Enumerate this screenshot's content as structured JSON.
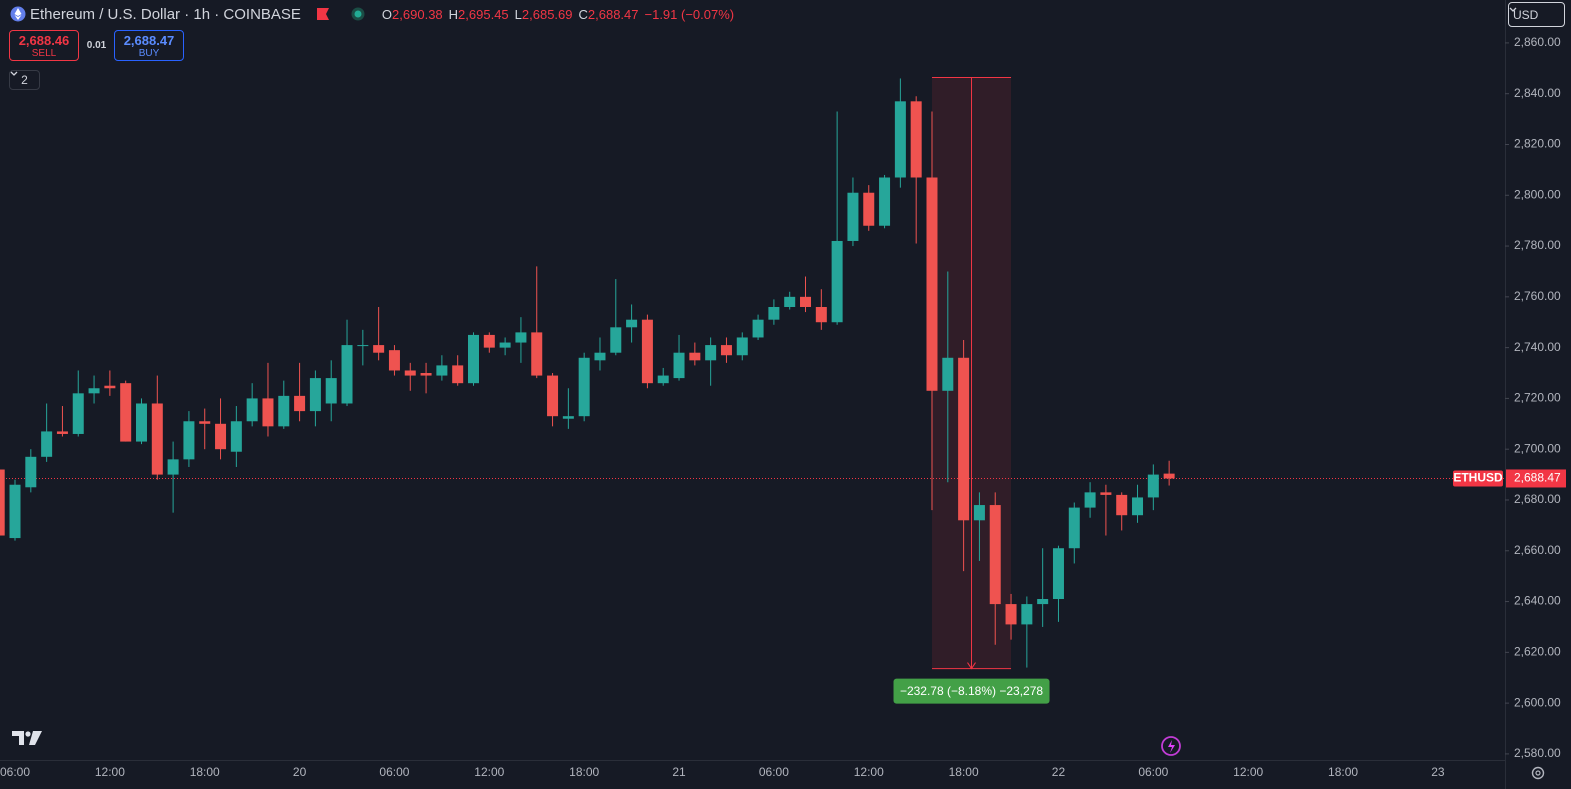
{
  "chart_data": {
    "type": "candlestick",
    "title": "Ethereum / U.S. Dollar · 1h · COINBASE",
    "ohlc_legend": [
      {
        "label": "O",
        "value": "2,690.38"
      },
      {
        "label": "H",
        "value": "2,695.45"
      },
      {
        "label": "L",
        "value": "2,685.69"
      },
      {
        "label": "C",
        "value": "2,688.47"
      }
    ],
    "change": "−1.91 (−0.07%)",
    "trade": {
      "sell_price": "2,688.46",
      "sell": "SELL",
      "spread": 0.01,
      "buy_price": "2,688.47",
      "buy": "BUY"
    },
    "indicator_count": 2,
    "currency": "USD",
    "symbol": "ETHUSD",
    "last_price": {
      "value": 2688.47,
      "label": "2,688.47"
    },
    "measure": {
      "high": 2846.4,
      "low": 2613.6,
      "label": "−232.78 (−8.18%) −23,278"
    },
    "up_color": "#26a69a",
    "down_color": "#ef5350",
    "categories": [
      null,
      "06:00",
      null,
      null,
      null,
      null,
      null,
      "12:00",
      null,
      null,
      null,
      null,
      null,
      "18:00",
      null,
      null,
      null,
      null,
      null,
      "20",
      null,
      null,
      null,
      null,
      null,
      "06:00",
      null,
      null,
      null,
      null,
      null,
      "12:00",
      null,
      null,
      null,
      null,
      null,
      "18:00",
      null,
      null,
      null,
      null,
      null,
      "21",
      null,
      null,
      null,
      null,
      null,
      "06:00",
      null,
      null,
      null,
      null,
      null,
      "12:00",
      null,
      null,
      null,
      null,
      null,
      "18:00",
      null,
      null,
      null,
      null,
      null,
      "22",
      null,
      null,
      null,
      null,
      null,
      "06:00",
      null,
      null,
      null,
      null,
      null,
      "12:00",
      null,
      null,
      null,
      null,
      null,
      "18:00",
      null,
      null,
      null,
      null,
      null,
      "23",
      null,
      null,
      null
    ],
    "open": [
      2692,
      2665,
      2685,
      2697,
      2707,
      2706,
      2722,
      2725,
      2726,
      2703,
      2718,
      2690,
      2696,
      2711,
      2710,
      2699,
      2711,
      2720,
      2709,
      2721,
      2715,
      2718,
      2718,
      2741,
      2741,
      2739,
      2731,
      2730,
      2729,
      2733,
      2726,
      2745,
      2740,
      2742,
      2746,
      2729,
      2712,
      2713,
      2735,
      2738,
      2748,
      2751,
      2726,
      2728,
      2738,
      2735,
      2741,
      2737,
      2744,
      2751,
      2756,
      2760,
      2756,
      2750,
      2782,
      2801,
      2788,
      2807,
      2837,
      2807,
      2723,
      2736,
      2672,
      2678,
      2639,
      2631,
      2639,
      2641,
      2661,
      2677,
      2683,
      2682,
      2674,
      2681,
      2690.38,
      null,
      null,
      null,
      null,
      null,
      null,
      null,
      null,
      null,
      null,
      null,
      null,
      null,
      null,
      null,
      null,
      null,
      null,
      null,
      null
    ],
    "high": [
      2693,
      2688,
      2700,
      2718,
      2717,
      2731,
      2729,
      2731,
      2727,
      2720,
      2729,
      2703,
      2715,
      2716,
      2720,
      2717,
      2726,
      2734,
      2727,
      2734,
      2731,
      2735,
      2751,
      2747,
      2756,
      2741,
      2734,
      2734,
      2737,
      2737,
      2746,
      2746,
      2744,
      2752,
      2772,
      2730,
      2724,
      2738,
      2744,
      2767,
      2757,
      2753,
      2732,
      2745,
      2742,
      2744,
      2744,
      2746,
      2753,
      2759,
      2762,
      2768,
      2763,
      2833,
      2807,
      2804,
      2808,
      2846,
      2839,
      2833,
      2770,
      2743,
      2683,
      2683,
      2643,
      2642,
      2661,
      2662,
      2679,
      2687,
      2686,
      2683,
      2686,
      2694,
      2695.45,
      null,
      null,
      null,
      null,
      null,
      null,
      null,
      null,
      null,
      null,
      null,
      null,
      null,
      null,
      null,
      null,
      null,
      null,
      null,
      null
    ],
    "low": [
      2665,
      2664,
      2683,
      2695,
      2705,
      2705,
      2718,
      2721,
      2703,
      2702,
      2688,
      2675,
      2693,
      2700,
      2696,
      2693,
      2709,
      2705,
      2708,
      2711,
      2709,
      2711,
      2717,
      2733,
      2735,
      2729,
      2723,
      2722,
      2727,
      2725,
      2725,
      2738,
      2737,
      2734,
      2728,
      2709,
      2708,
      2711,
      2731,
      2737,
      2742,
      2724,
      2725,
      2727,
      2733,
      2725,
      2734,
      2735,
      2743,
      2749,
      2755,
      2754,
      2747,
      2749,
      2780,
      2786,
      2787,
      2803,
      2781,
      2676,
      2687,
      2652,
      2656,
      2623,
      2625,
      2614,
      2630,
      2632,
      2655,
      2673,
      2666,
      2668,
      2671,
      2676,
      2685.69,
      null,
      null,
      null,
      null,
      null,
      null,
      null,
      null,
      null,
      null,
      null,
      null,
      null,
      null,
      null,
      null,
      null,
      null,
      null,
      null
    ],
    "close": [
      2666,
      2686,
      2697,
      2707,
      2706,
      2722,
      2724,
      2724,
      2703,
      2718,
      2690,
      2696,
      2711,
      2710,
      2700,
      2711,
      2720,
      2709,
      2721,
      2715,
      2728,
      2728,
      2741,
      2741,
      2738,
      2731,
      2729,
      2729,
      2733,
      2726,
      2745,
      2740,
      2742,
      2746,
      2729,
      2713,
      2713,
      2736,
      2738,
      2748,
      2751,
      2726,
      2729,
      2738,
      2735,
      2741,
      2737,
      2744,
      2751,
      2756,
      2760,
      2756,
      2750,
      2782,
      2801,
      2788,
      2807,
      2837,
      2807,
      2723,
      2736,
      2672,
      2678,
      2639,
      2631,
      2639,
      2641,
      2661,
      2677,
      2683,
      2682,
      2674,
      2681,
      2690,
      2688.47,
      null,
      null,
      null,
      null,
      null,
      null,
      null,
      null,
      null,
      null,
      null,
      null,
      null,
      null,
      null,
      null,
      null,
      null,
      null,
      null
    ],
    "ylim": [
      2577.6,
      2876.9
    ],
    "yticks": [
      {
        "value": 2580,
        "label": "2,580.00"
      },
      {
        "value": 2600,
        "label": "2,600.00"
      },
      {
        "value": 2620,
        "label": "2,620.00"
      },
      {
        "value": 2640,
        "label": "2,640.00"
      },
      {
        "value": 2660,
        "label": "2,660.00"
      },
      {
        "value": 2680,
        "label": "2,680.00"
      },
      {
        "value": 2700,
        "label": "2,700.00"
      },
      {
        "value": 2720,
        "label": "2,720.00"
      },
      {
        "value": 2740,
        "label": "2,740.00"
      },
      {
        "value": 2760,
        "label": "2,760.00"
      },
      {
        "value": 2780,
        "label": "2,780.00"
      },
      {
        "value": 2800,
        "label": "2,800.00"
      },
      {
        "value": 2820,
        "label": "2,820.00"
      },
      {
        "value": 2840,
        "label": "2,840.00"
      },
      {
        "value": 2860,
        "label": "2,860.00"
      }
    ],
    "grid": false
  }
}
